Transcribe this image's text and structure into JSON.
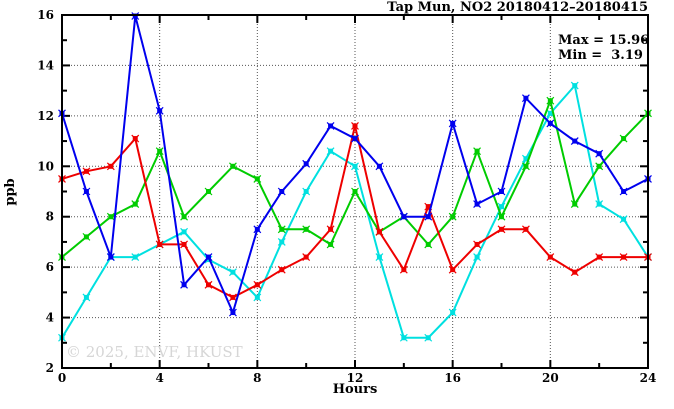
{
  "title": "Tap Mun, NO2 20180412–20180415",
  "stats": {
    "max_label": "Max = 15.96",
    "min_label": "Min =  3.19"
  },
  "watermark": "© 2025, ENVF, HKUST",
  "axes": {
    "x_label": "Hours",
    "y_label": "ppb"
  },
  "chart_data": {
    "type": "line",
    "title": "Tap Mun, NO2 20180412–20180415",
    "xlabel": "Hours",
    "ylabel": "ppb",
    "xlim": [
      0,
      24
    ],
    "ylim": [
      2,
      16
    ],
    "x_major_ticks": [
      0,
      4,
      8,
      12,
      16,
      20,
      24
    ],
    "x_minor_ticks": [
      2,
      6,
      10,
      14,
      18,
      22
    ],
    "y_major_ticks": [
      2,
      4,
      6,
      8,
      10,
      12,
      14,
      16
    ],
    "y_minor_ticks": [
      3,
      5,
      7,
      9,
      11,
      13,
      15
    ],
    "x_grid": [
      4,
      8,
      12,
      16,
      20
    ],
    "y_grid": [
      4,
      6,
      8,
      10,
      12,
      14
    ],
    "grid_style": "dotted",
    "legend": "none",
    "max": 15.96,
    "min": 3.19,
    "x": [
      0,
      1,
      2,
      3,
      4,
      5,
      6,
      7,
      8,
      9,
      10,
      11,
      12,
      13,
      14,
      15,
      16,
      17,
      18,
      19,
      20,
      21,
      22,
      23,
      24
    ],
    "series": [
      {
        "name": "cyan",
        "color": "#00e0e0",
        "values": [
          3.2,
          4.8,
          6.4,
          6.4,
          6.9,
          7.4,
          6.3,
          5.8,
          4.8,
          7.0,
          9.0,
          10.6,
          10.0,
          6.4,
          3.2,
          3.2,
          4.2,
          6.4,
          8.4,
          10.3,
          12.1,
          13.2,
          8.5,
          7.9,
          6.4
        ]
      },
      {
        "name": "green",
        "color": "#00cc00",
        "values": [
          6.4,
          7.2,
          8.0,
          8.5,
          10.6,
          8.0,
          9.0,
          10.0,
          9.5,
          7.5,
          7.5,
          6.9,
          9.0,
          7.4,
          8.0,
          6.9,
          8.0,
          10.6,
          8.0,
          10.0,
          12.6,
          8.5,
          10.0,
          11.1,
          12.1
        ]
      },
      {
        "name": "red",
        "color": "#ee0000",
        "values": [
          9.5,
          9.8,
          10.0,
          11.1,
          6.9,
          6.9,
          5.3,
          4.8,
          5.3,
          5.9,
          6.4,
          7.5,
          11.6,
          7.4,
          5.9,
          8.4,
          5.9,
          6.9,
          7.5,
          7.5,
          6.4,
          5.8,
          6.4,
          6.4,
          6.4
        ]
      },
      {
        "name": "blue",
        "color": "#0000ee",
        "values": [
          12.1,
          9.0,
          6.4,
          15.96,
          12.2,
          5.3,
          6.4,
          4.2,
          7.5,
          9.0,
          10.1,
          11.6,
          11.1,
          10.0,
          8.0,
          8.0,
          11.7,
          8.5,
          9.0,
          12.7,
          11.7,
          11.0,
          10.5,
          9.0,
          9.5
        ]
      }
    ]
  }
}
